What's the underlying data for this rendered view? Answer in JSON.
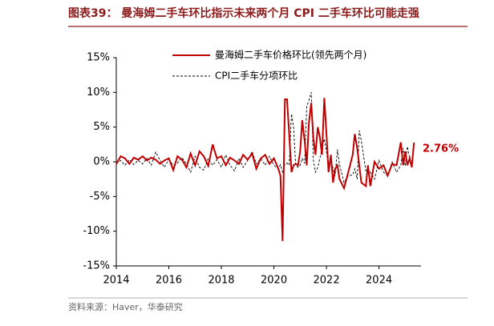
{
  "chart_data": {
    "type": "line",
    "title": "图表39：  曼海姆二手车环比指示未来两个月 CPI 二手车环比可能走强",
    "source": "资料来源：Haver，华泰研究",
    "annotation": "2.76%",
    "x": [
      2014.0,
      2014.17,
      2014.33,
      2014.5,
      2014.67,
      2014.83,
      2015.0,
      2015.17,
      2015.33,
      2015.5,
      2015.67,
      2015.83,
      2016.0,
      2016.17,
      2016.33,
      2016.5,
      2016.67,
      2016.83,
      2017.0,
      2017.17,
      2017.33,
      2017.5,
      2017.67,
      2017.83,
      2018.0,
      2018.17,
      2018.33,
      2018.5,
      2018.67,
      2018.83,
      2019.0,
      2019.17,
      2019.33,
      2019.5,
      2019.67,
      2019.83,
      2020.0,
      2020.17,
      2020.25,
      2020.33,
      2020.42,
      2020.5,
      2020.58,
      2020.67,
      2020.75,
      2020.83,
      2020.92,
      2021.0,
      2021.08,
      2021.17,
      2021.25,
      2021.33,
      2021.42,
      2021.5,
      2021.58,
      2021.67,
      2021.75,
      2021.83,
      2021.92,
      2022.0,
      2022.08,
      2022.17,
      2022.25,
      2022.33,
      2022.42,
      2022.5,
      2022.67,
      2022.83,
      2023.0,
      2023.08,
      2023.17,
      2023.25,
      2023.33,
      2023.5,
      2023.58,
      2023.67,
      2023.83,
      2024.0,
      2024.17,
      2024.33,
      2024.5,
      2024.67,
      2024.83,
      2024.92,
      2025.0,
      2025.08,
      2025.17,
      2025.25,
      2025.33
    ],
    "series": [
      {
        "name": "曼海姆二手车价格环比(领先两个月)",
        "color": "#c00000",
        "dash": false,
        "values": [
          -0.3,
          0.8,
          0.5,
          -0.3,
          0.6,
          0.3,
          0.8,
          0.2,
          0.6,
          0.3,
          -0.3,
          0.2,
          0.5,
          -1.2,
          0.8,
          0.3,
          -0.8,
          1.2,
          -0.5,
          1.5,
          0.8,
          -0.6,
          2.5,
          0.5,
          0.8,
          -0.5,
          0.6,
          0.2,
          -0.3,
          1.0,
          0.3,
          1.2,
          -1.0,
          0.5,
          1.0,
          -0.3,
          0.5,
          -1.0,
          -2.0,
          -11.4,
          9.0,
          9.0,
          4.0,
          -1.5,
          -0.5,
          -0.3,
          -0.5,
          1.5,
          6.0,
          3.0,
          -0.5,
          5.5,
          8.5,
          3.5,
          1.0,
          5.0,
          3.5,
          1.0,
          9.2,
          4.0,
          -1.5,
          1.0,
          -3.0,
          -1.0,
          -0.5,
          -2.5,
          -3.8,
          -1.5,
          1.0,
          4.0,
          2.0,
          -0.5,
          -3.0,
          -3.5,
          -0.5,
          -3.5,
          0.0,
          -1.0,
          -0.5,
          -2.0,
          -0.3,
          -0.5,
          2.8,
          -0.5,
          1.5,
          -0.5,
          0.5,
          -0.8,
          2.76
        ]
      },
      {
        "name": "CPI二手车分项环比",
        "color": "#000000",
        "dash": true,
        "values": [
          -0.3,
          0.2,
          -0.5,
          0.3,
          -0.4,
          0.2,
          -0.3,
          0.5,
          -0.5,
          1.4,
          0.2,
          -0.8,
          0.3,
          -0.5,
          -0.2,
          0.6,
          -0.3,
          -1.5,
          0.8,
          -0.8,
          -1.2,
          0.5,
          -0.5,
          0.3,
          -0.8,
          1.0,
          -0.5,
          -1.3,
          0.5,
          -0.8,
          0.2,
          1.5,
          -0.3,
          0.5,
          -0.5,
          0.8,
          -0.5,
          -1.0,
          -0.4,
          -1.5,
          -0.3,
          -0.2,
          -0.5,
          6.9,
          5.0,
          -0.5,
          -0.8,
          -0.5,
          0.5,
          -0.2,
          8.0,
          8.8,
          10.0,
          0.3,
          -1.5,
          -0.8,
          0.5,
          2.0,
          3.3,
          1.5,
          -1.0,
          0.5,
          -1.0,
          -2.0,
          1.8,
          -0.4,
          -3.0,
          -2.0,
          -1.9,
          -1.0,
          -2.5,
          4.5,
          3.0,
          -1.3,
          -1.0,
          -1.5,
          -2.5,
          0.2,
          -1.5,
          -2.0,
          0.0,
          -1.5,
          -0.5,
          2.0,
          -0.6,
          2.2,
          0.5,
          -0.6,
          null
        ]
      }
    ],
    "xlim": [
      2014,
      2025.6
    ],
    "xticks": [
      2014,
      2016,
      2018,
      2020,
      2022,
      2024
    ],
    "ylim": [
      -15,
      15
    ],
    "yticks": [
      {
        "value": -15,
        "label": "-15%"
      },
      {
        "value": -10,
        "label": "-10%"
      },
      {
        "value": -5,
        "label": "-5%"
      },
      {
        "value": 0,
        "label": "0%"
      },
      {
        "value": 5,
        "label": "5%"
      },
      {
        "value": 10,
        "label": "10%"
      },
      {
        "value": 15,
        "label": "15%"
      }
    ],
    "legend": "top"
  }
}
